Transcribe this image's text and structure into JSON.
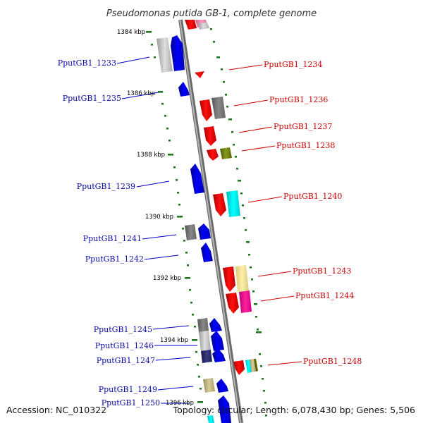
{
  "title": "Pseudomonas putida GB-1, complete genome",
  "footer": {
    "accession": "Accession: NC_010322",
    "topology": "Topology: circular; Length: 6,078,430 bp; Genes: 5,506"
  },
  "colors": {
    "forward": "#0000ee",
    "reverse": "#ee0000",
    "backbone": "#8a8a8a",
    "tick": "#1f7a1f",
    "label_blue": "#0a0aa8",
    "label_red": "#cc0000"
  },
  "ruler": [
    "1384 kbp",
    "1386 kbp",
    "1388 kbp",
    "1390 kbp",
    "1392 kbp",
    "1394 kbp",
    "1396 kbp"
  ],
  "genes_left": [
    "PputGB1_1233",
    "PputGB1_1235",
    "PputGB1_1239",
    "PputGB1_1241",
    "PputGB1_1242",
    "PputGB1_1245",
    "PputGB1_1246",
    "PputGB1_1247",
    "PputGB1_1249",
    "PputGB1_1250"
  ],
  "genes_right": [
    "PputGB1_1234",
    "PputGB1_1236",
    "PputGB1_1237",
    "PputGB1_1238",
    "PputGB1_1240",
    "PputGB1_1243",
    "PputGB1_1244",
    "PputGB1_1248"
  ]
}
